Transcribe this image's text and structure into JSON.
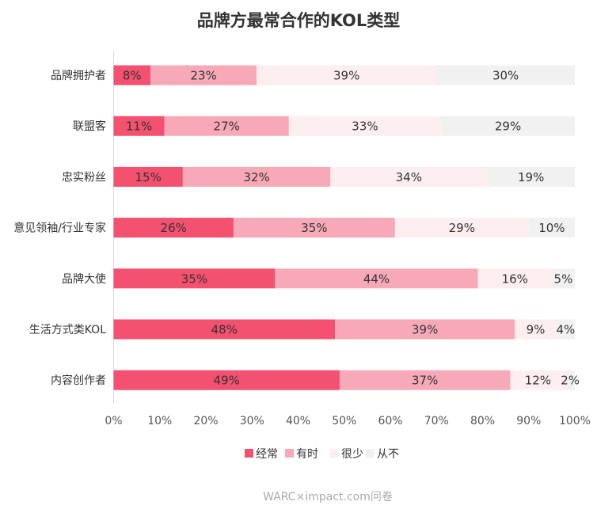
{
  "chart_data": {
    "type": "bar",
    "orientation": "horizontal",
    "stacked": true,
    "title": "品牌方最常合作的KOL类型",
    "categories": [
      "品牌拥护者",
      "联盟客",
      "忠实粉丝",
      "意见领袖/行业专家",
      "品牌大使",
      "生活方式类KOL",
      "内容创作者"
    ],
    "series": [
      {
        "name": "经常",
        "color": "#f4506f",
        "values": [
          8,
          11,
          15,
          26,
          35,
          48,
          49
        ]
      },
      {
        "name": "有时",
        "color": "#f7a9b8",
        "values": [
          23,
          27,
          32,
          35,
          44,
          39,
          37
        ]
      },
      {
        "name": "很少",
        "color": "#fdeef0",
        "values": [
          39,
          33,
          34,
          29,
          16,
          9,
          12
        ]
      },
      {
        "name": "从不",
        "color": "#f1f1f1",
        "values": [
          30,
          29,
          19,
          10,
          5,
          4,
          2
        ]
      }
    ],
    "value_suffix": "%",
    "xlim": [
      0,
      100
    ],
    "x_ticks": [
      "0%",
      "10%",
      "20%",
      "30%",
      "40%",
      "50%",
      "60%",
      "70%",
      "80%",
      "90%",
      "100%"
    ],
    "legend_position": "bottom",
    "grid": false
  },
  "source": "WARC×impact.com问卷"
}
